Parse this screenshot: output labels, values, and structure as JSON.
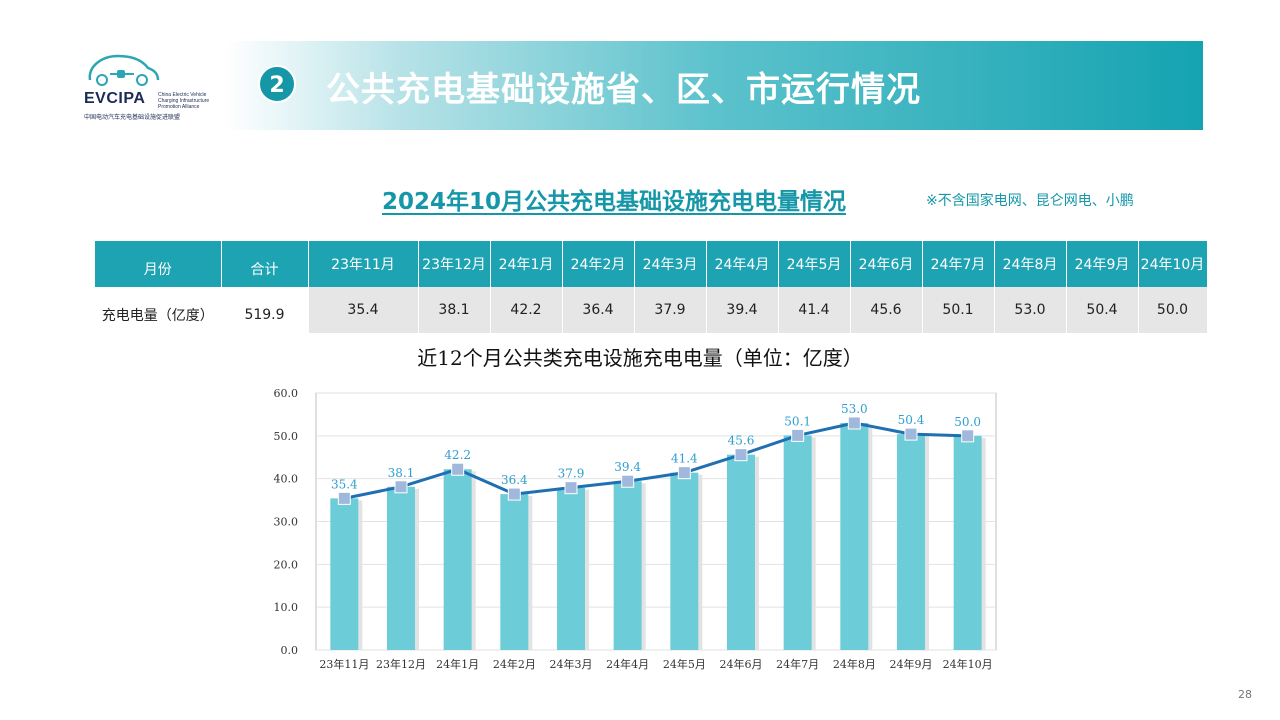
{
  "logo": {
    "name": "EVCIPA",
    "en": [
      "China Electric Vehicle",
      "Charging Infrastructure",
      "Promotion Alliance"
    ],
    "cn": "中国电动汽车充电基础设施促进联盟"
  },
  "header": {
    "section_number": "2",
    "title": "公共充电基础设施省、区、市运行情况"
  },
  "subtitle": "2024年10月公共充电基础设施充电电量情况",
  "note": "※不含国家电网、昆仑网电、小鹏",
  "table": {
    "headers": [
      "月份",
      "合计",
      "23年11月",
      "23年12月",
      "24年1月",
      "24年2月",
      "24年3月",
      "24年4月",
      "24年5月",
      "24年6月",
      "24年7月",
      "24年8月",
      "24年9月",
      "24年10月"
    ],
    "row": [
      "充电电量（亿度）",
      "519.9",
      "35.4",
      "38.1",
      "42.2",
      "36.4",
      "37.9",
      "39.4",
      "41.4",
      "45.6",
      "50.1",
      "53.0",
      "50.4",
      "50.0"
    ]
  },
  "chart_data": {
    "type": "bar",
    "title": "近12个月公共类充电设施充电电量（单位：亿度）",
    "categories": [
      "23年11月",
      "23年12月",
      "24年1月",
      "24年2月",
      "24年3月",
      "24年4月",
      "24年5月",
      "24年6月",
      "24年7月",
      "24年8月",
      "24年9月",
      "24年10月"
    ],
    "values": [
      35.4,
      38.1,
      42.2,
      36.4,
      37.9,
      39.4,
      41.4,
      45.6,
      50.1,
      53.0,
      50.4,
      50.0
    ],
    "value_labels": [
      "35.4",
      "38.1",
      "42.2",
      "36.4",
      "37.9",
      "39.4",
      "41.4",
      "45.6",
      "50.1",
      "53.0",
      "50.4",
      "50.0"
    ],
    "overlay": "line-with-markers",
    "ylim": [
      0,
      60
    ],
    "yticks": [
      "0.0",
      "10.0",
      "20.0",
      "30.0",
      "40.0",
      "50.0",
      "60.0"
    ],
    "grid": true,
    "legend": "none",
    "colors": {
      "bar": "#6ccdd8",
      "line": "#1f6fb3",
      "marker": "#9fb8dc",
      "label": "#2e9fd0"
    }
  },
  "page_number": "28"
}
